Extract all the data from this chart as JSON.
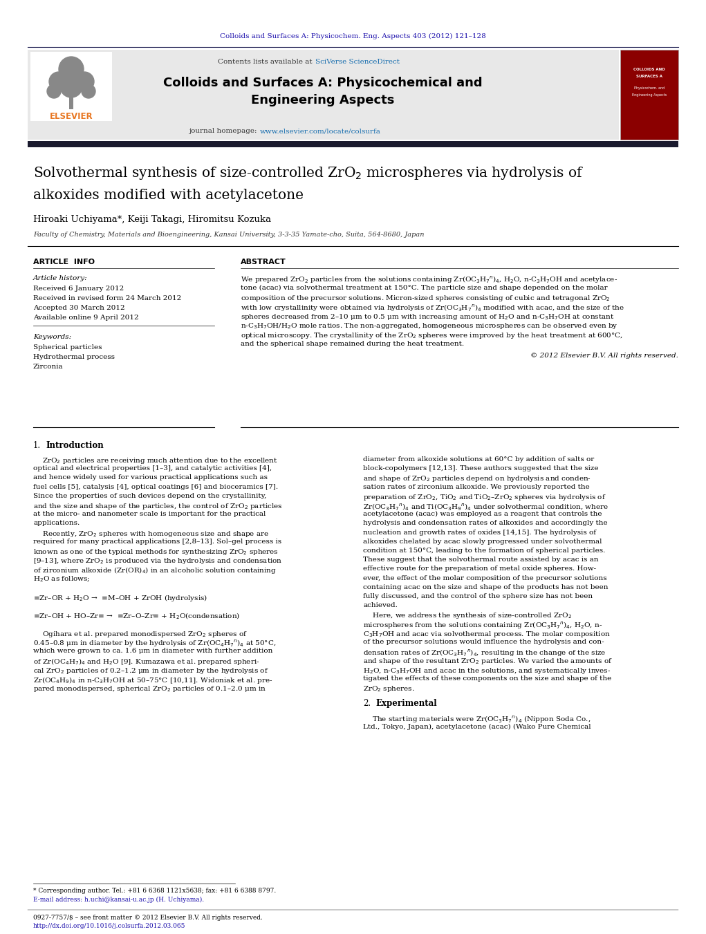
{
  "page_width": 10.21,
  "page_height": 13.51,
  "bg_color": "#ffffff",
  "top_journal_ref": "Colloids and Surfaces A: Physicochem. Eng. Aspects 403 (2012) 121–128",
  "top_journal_ref_color": "#1a0dab",
  "header_bg": "#e8e8e8",
  "header_text1": "Contents lists available at ",
  "header_sciverse": "SciVerse ScienceDirect",
  "header_sciverse_color": "#1a6faf",
  "journal_title_line1": "Colloids and Surfaces A: Physicochemical and",
  "journal_title_line2": "Engineering Aspects",
  "journal_title_color": "#000000",
  "journal_homepage_text": "journal homepage: ",
  "journal_homepage_url": "www.elsevier.com/locate/colsurfa",
  "journal_homepage_url_color": "#1a6faf",
  "elsevier_logo_color": "#e87722",
  "dark_bar_color": "#1a1a2e",
  "paper_title_color": "#000000",
  "authors": "Hiroaki Uchiyama*, Keiji Takagi, Hiromitsu Kozuka",
  "affiliation": "Faculty of Chemistry, Materials and Bioengineering, Kansai University, 3-3-35 Yamate-cho, Suita, 564-8680, Japan",
  "article_info_header": "ARTICLE  INFO",
  "abstract_header": "ABSTRACT",
  "article_history_label": "Article history:",
  "received": "Received 6 January 2012",
  "revised": "Received in revised form 24 March 2012",
  "accepted": "Accepted 30 March 2012",
  "available": "Available online 9 April 2012",
  "keywords_label": "Keywords:",
  "keywords": [
    "Spherical particles",
    "Hydrothermal process",
    "Zirconia"
  ],
  "copyright": "© 2012 Elsevier B.V. All rights reserved.",
  "footnote_star": "* Corresponding author. Tel.: +81 6 6368 1121x5638; fax: +81 6 6388 8797.",
  "footnote_email": "E-mail address: h.uchi@kansai-u.ac.jp (H. Uchiyama).",
  "footer_left1": "0927-7757/$ – see front matter © 2012 Elsevier B.V. All rights reserved.",
  "footer_left2": "http://dx.doi.org/10.1016/j.colsurfa.2012.03.065",
  "footer_url_color": "#1a0dab",
  "cover_image_color": "#8b0000",
  "abstract_lines": [
    "We prepared ZrO$_2$ particles from the solutions containing Zr(OC$_3$H$_7$$^n$)$_4$, H$_2$O, n-C$_3$H$_7$OH and acetylace-",
    "tone (acac) via solvothermal treatment at 150°C. The particle size and shape depended on the molar",
    "composition of the precursor solutions. Micron-sized spheres consisting of cubic and tetragonal ZrO$_2$",
    "with low crystallinity were obtained via hydrolysis of Zr(OC$_3$H$_7$$^n$)$_4$ modified with acac, and the size of the",
    "spheres decreased from 2–10 μm to 0.5 μm with increasing amount of H$_2$O and n-C$_3$H$_7$OH at constant",
    "n-C$_3$H$_7$OH/H$_2$O mole ratios. The non-aggregated, homogeneous microspheres can be observed even by",
    "optical microscopy. The crystallinity of the ZrO$_2$ spheres were improved by the heat treatment at 600°C,",
    "and the spherical shape remained during the heat treatment."
  ],
  "intro_col1_lines": [
    "    ZrO$_2$ particles are receiving much attention due to the excellent",
    "optical and electrical properties [1–3], and catalytic activities [4],",
    "and hence widely used for various practical applications such as",
    "fuel cells [5], catalysis [4], optical coatings [6] and bioceramics [7].",
    "Since the properties of such devices depend on the crystallinity,",
    "and the size and shape of the particles, the control of ZrO$_2$ particles",
    "at the micro- and nanometer scale is important for the practical",
    "applications.",
    "    Recently, ZrO$_2$ spheres with homogeneous size and shape are",
    "required for many practical applications [2,8–13]. Sol–gel process is",
    "known as one of the typical methods for synthesizing ZrO$_2$ spheres",
    "[9–13], where ZrO$_2$ is produced via the hydrolysis and condensation",
    "of zirconium alkoxide (Zr(OR)$_4$) in an alcoholic solution containing",
    "H$_2$O as follows;",
    "",
    "≡Zr–OR + H$_2$O →  ≡M–OH + ZrOH (hydrolysis)",
    "",
    "≡Zr–OH + HO–Zr≡ →  ≡Zr–O–Zr≡ + H$_2$O(condensation)",
    "",
    "    Ogihara et al. prepared monodispersed ZrO$_2$ spheres of",
    "0.45–0.8 μm in diameter by the hydrolysis of Zr(OC$_4$H$_7$$^n$)$_4$ at 50°C,",
    "which were grown to ca. 1.6 μm in diameter with further addition",
    "of Zr(OC$_4$H$_7$)$_4$ and H$_2$O [9]. Kumazawa et al. prepared spheri-",
    "cal ZrO$_2$ particles of 0.2–1.2 μm in diameter by the hydrolysis of",
    "Zr(OC$_4$H$_9$)$_4$ in n-C$_3$H$_7$OH at 50–75°C [10,11]. Widoniak et al. pre-",
    "pared monodispersed, spherical ZrO$_2$ particles of 0.1–2.0 μm in"
  ],
  "intro_col2_lines": [
    "diameter from alkoxide solutions at 60°C by addition of salts or",
    "block-copolymers [12,13]. These authors suggested that the size",
    "and shape of ZrO$_2$ particles depend on hydrolysis and conden-",
    "sation rates of zirconium alkoxide. We previously reported the",
    "preparation of ZrO$_2$, TiO$_2$ and TiO$_2$–ZrO$_2$ spheres via hydrolysis of",
    "Zr(OC$_3$H$_7$$^n$)$_4$ and Ti(OC$_3$H$_9$$^n$)$_4$ under solvothermal condition, where",
    "acetylacetone (acac) was employed as a reagent that controls the",
    "hydrolysis and condensation rates of alkoxides and accordingly the",
    "nucleation and growth rates of oxides [14,15]. The hydrolysis of",
    "alkoxides chelated by acac slowly progressed under solvothermal",
    "condition at 150°C, leading to the formation of spherical particles.",
    "These suggest that the solvothermal route assisted by acac is an",
    "effective route for the preparation of metal oxide spheres. How-",
    "ever, the effect of the molar composition of the precursor solutions",
    "containing acac on the size and shape of the products has not been",
    "fully discussed, and the control of the sphere size has not been",
    "achieved.",
    "    Here, we address the synthesis of size-controlled ZrO$_2$",
    "microspheres from the solutions containing Zr(OC$_3$H$_7$$^n$)$_4$, H$_2$O, n-",
    "C$_3$H$_7$OH and acac via solvothermal process. The molar composition",
    "of the precursor solutions would influence the hydrolysis and con-",
    "densation rates of Zr(OC$_3$H$_7$$^n$)$_4$, resulting in the change of the size",
    "and shape of the resultant ZrO$_2$ particles. We varied the amounts of",
    "H$_2$O, n-C$_3$H$_7$OH and acac in the solutions, and systematically inves-",
    "tigated the effects of these components on the size and shape of the",
    "ZrO$_2$ spheres."
  ],
  "sec2_lines": [
    "    The starting materials were Zr(OC$_3$H$_7$$^n$)$_4$ (Nippon Soda Co.,",
    "Ltd., Tokyo, Japan), acetylacetone (acac) (Wako Pure Chemical"
  ]
}
